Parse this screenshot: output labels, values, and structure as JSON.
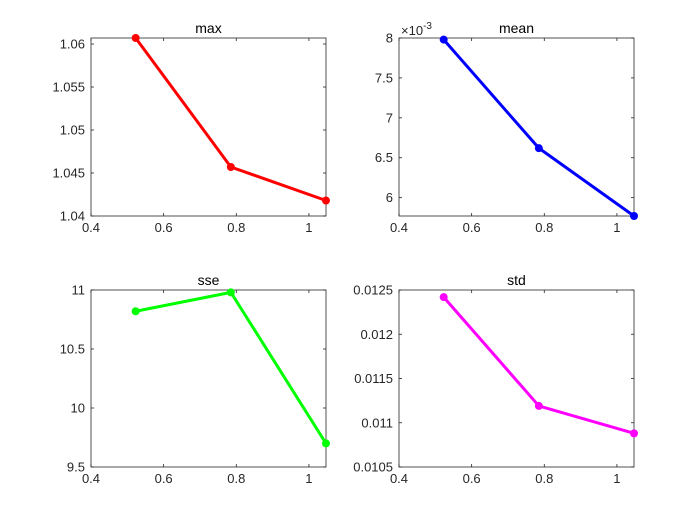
{
  "chart_data": [
    {
      "type": "line",
      "title": "max",
      "xlabel": "",
      "ylabel": "",
      "color": "#ff0000",
      "x": [
        0.523,
        0.785,
        1.047
      ],
      "series": [
        {
          "values": [
            1.0607,
            1.0457,
            1.0418
          ]
        }
      ],
      "xlim": [
        0.4,
        1.047
      ],
      "ylim": [
        1.04,
        1.0607
      ],
      "xticks": [
        "0.4",
        "0.6",
        "0.8",
        "1"
      ],
      "yticks": [
        "1.04",
        "1.045",
        "1.05",
        "1.055",
        "1.06"
      ],
      "grid": false
    },
    {
      "type": "line",
      "title": "mean",
      "xlabel": "",
      "ylabel": "",
      "color": "#0000ff",
      "y_exponent": "×10",
      "y_exponent_power": "-3",
      "x": [
        0.523,
        0.785,
        1.047
      ],
      "series": [
        {
          "values": [
            7.98,
            6.62,
            5.77
          ]
        }
      ],
      "xlim": [
        0.4,
        1.047
      ],
      "ylim": [
        5.77,
        8.0
      ],
      "xticks": [
        "0.4",
        "0.6",
        "0.8",
        "1"
      ],
      "yticks": [
        "6",
        "6.5",
        "7",
        "7.5",
        "8"
      ],
      "grid": false
    },
    {
      "type": "line",
      "title": "sse",
      "xlabel": "",
      "ylabel": "",
      "color": "#00ff00",
      "x": [
        0.523,
        0.785,
        1.047
      ],
      "series": [
        {
          "values": [
            10.82,
            10.98,
            9.7
          ]
        }
      ],
      "xlim": [
        0.4,
        1.047
      ],
      "ylim": [
        9.5,
        11.0
      ],
      "xticks": [
        "0.4",
        "0.6",
        "0.8",
        "1"
      ],
      "yticks": [
        "9.5",
        "10",
        "10.5",
        "11"
      ],
      "grid": false
    },
    {
      "type": "line",
      "title": "std",
      "xlabel": "",
      "ylabel": "",
      "color": "#ff00ff",
      "x": [
        0.523,
        0.785,
        1.047
      ],
      "series": [
        {
          "values": [
            0.01242,
            0.01119,
            0.01088
          ]
        }
      ],
      "xlim": [
        0.4,
        1.047
      ],
      "ylim": [
        0.0105,
        0.0125
      ],
      "xticks": [
        "0.4",
        "0.6",
        "0.8",
        "1"
      ],
      "yticks": [
        "0.0105",
        "0.011",
        "0.0115",
        "0.012",
        "0.0125"
      ],
      "grid": false
    }
  ]
}
